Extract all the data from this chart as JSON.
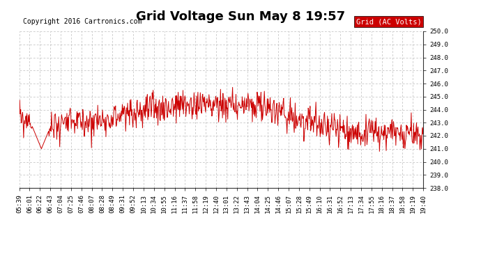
{
  "title": "Grid Voltage Sun May 8 19:57",
  "copyright": "Copyright 2016 Cartronics.com",
  "legend_label": "Grid (AC Volts)",
  "legend_bg": "#cc0000",
  "legend_fg": "#ffffff",
  "line_color": "#cc0000",
  "bg_color": "#ffffff",
  "grid_color": "#bbbbbb",
  "ylim": [
    238.0,
    250.0
  ],
  "yticks": [
    238.0,
    239.0,
    240.0,
    241.0,
    242.0,
    243.0,
    244.0,
    245.0,
    246.0,
    247.0,
    248.0,
    249.0,
    250.0
  ],
  "xtick_labels": [
    "05:39",
    "06:01",
    "06:22",
    "06:43",
    "07:04",
    "07:25",
    "07:46",
    "08:07",
    "08:28",
    "08:49",
    "09:31",
    "09:52",
    "10:13",
    "10:34",
    "10:55",
    "11:16",
    "11:37",
    "11:58",
    "12:19",
    "12:40",
    "13:01",
    "13:22",
    "13:43",
    "14:04",
    "14:25",
    "14:46",
    "15:07",
    "15:28",
    "15:49",
    "16:10",
    "16:31",
    "16:52",
    "17:13",
    "17:34",
    "17:55",
    "18:16",
    "18:37",
    "18:58",
    "19:19",
    "19:40"
  ],
  "title_fontsize": 13,
  "copyright_fontsize": 7,
  "tick_fontsize": 6.5,
  "legend_fontsize": 7.5
}
